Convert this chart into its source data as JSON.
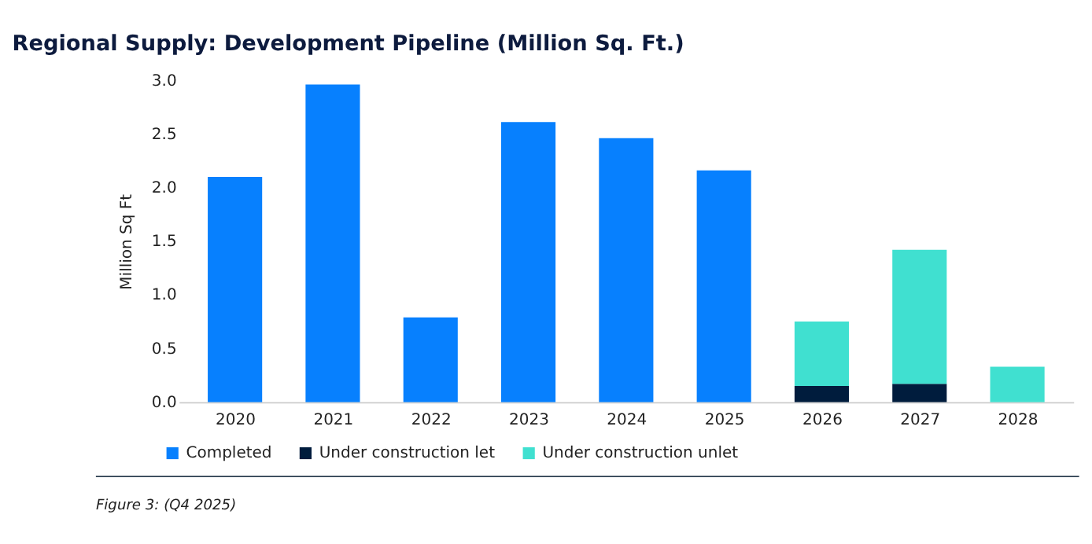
{
  "chart_data": {
    "type": "bar",
    "title": "Regional Supply: Development Pipeline (Million Sq. Ft.)",
    "ylabel": "Million Sq Ft",
    "categories": [
      "2020",
      "2021",
      "2022",
      "2023",
      "2024",
      "2025",
      "2026",
      "2027",
      "2028"
    ],
    "stacked": true,
    "series": [
      {
        "name": "Completed",
        "color": "#0780fe",
        "values": [
          2.1,
          2.96,
          0.79,
          2.61,
          2.46,
          2.16,
          null,
          null,
          null
        ]
      },
      {
        "name": "Under construction let",
        "color": "#001c3d",
        "values": [
          null,
          null,
          null,
          null,
          null,
          null,
          0.15,
          0.17,
          null
        ]
      },
      {
        "name": "Under construction unlet",
        "color": "#40e0d0",
        "values": [
          null,
          null,
          null,
          null,
          null,
          null,
          0.6,
          1.25,
          0.33
        ]
      }
    ],
    "ylim": [
      0,
      3.0
    ],
    "yticks": [
      {
        "value": 0,
        "label": "0.0"
      },
      {
        "value": 0.5,
        "label": "0.5"
      },
      {
        "value": 1,
        "label": "1.0"
      },
      {
        "value": 1.5,
        "label": "1.5"
      },
      {
        "value": 2,
        "label": "2.0"
      },
      {
        "value": 2.5,
        "label": "2.5"
      },
      {
        "value": 3,
        "label": "3.0"
      }
    ],
    "grid": false,
    "legend": "bottom left",
    "annotations": [
      "Figure 3: (Q4 2025)"
    ]
  }
}
